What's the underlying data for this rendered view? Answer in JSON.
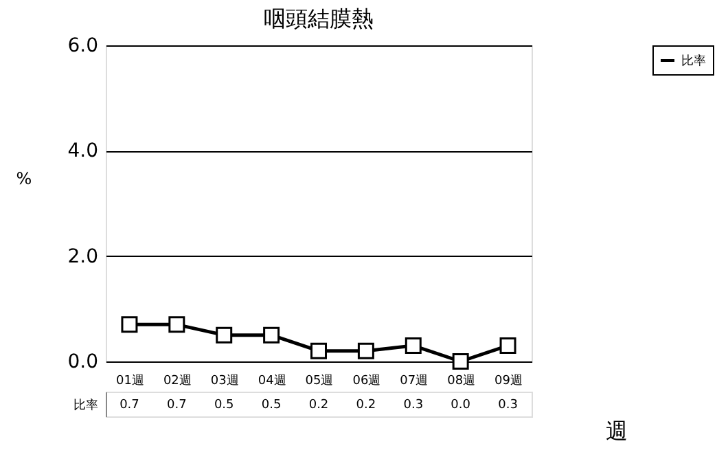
{
  "chart_data": {
    "type": "line",
    "title": "咽頭結膜熱",
    "ylabel": "%",
    "xlabel": "週",
    "categories": [
      "01週",
      "02週",
      "03週",
      "04週",
      "05週",
      "06週",
      "07週",
      "08週",
      "09週"
    ],
    "series": [
      {
        "name": "比率",
        "color": "#000000",
        "values": [
          0.7,
          0.7,
          0.5,
          0.5,
          0.2,
          0.2,
          0.3,
          0.0,
          0.3
        ],
        "value_labels": [
          "0.7",
          "0.7",
          "0.5",
          "0.5",
          "0.2",
          "0.2",
          "0.3",
          "0.0",
          "0.3"
        ]
      }
    ],
    "ylim": [
      0,
      6
    ],
    "yticks": [
      {
        "value": 0,
        "label": "0.0"
      },
      {
        "value": 2,
        "label": "2.0"
      },
      {
        "value": 4,
        "label": "4.0"
      },
      {
        "value": 6,
        "label": "6.0"
      }
    ],
    "grid": "y",
    "legend": "top right",
    "marker": "square",
    "line_style": "solid"
  }
}
